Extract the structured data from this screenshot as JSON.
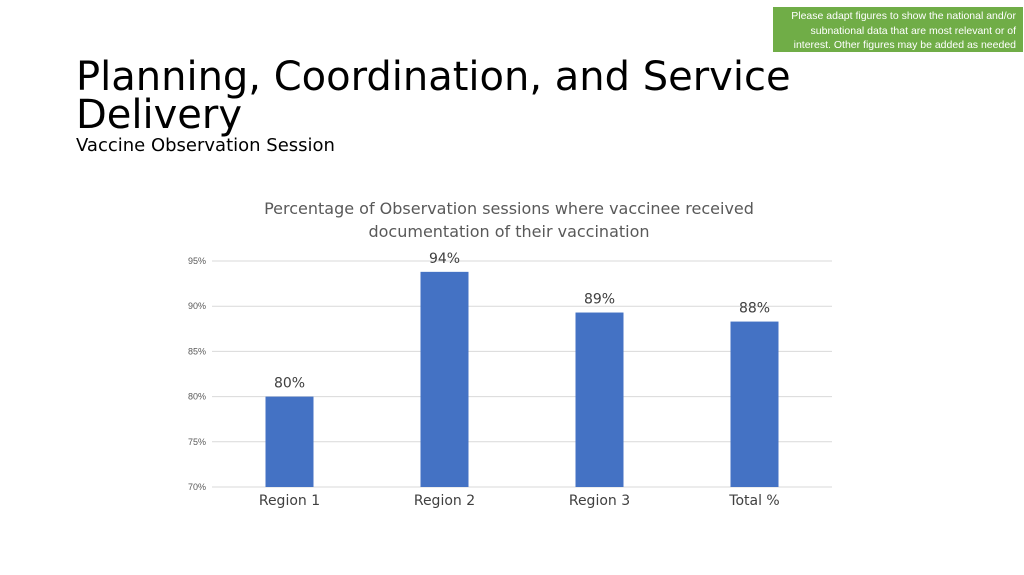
{
  "note": {
    "lines": [
      "Please adapt figures to show the national and/or",
      "subnational data that are most relevant or of",
      "interest. Other figures may be added as needed"
    ]
  },
  "slide": {
    "title": "Planning, Coordination, and Service Delivery",
    "subtitle": "Vaccine Observation Session"
  },
  "colors": {
    "bar": "#4472c4",
    "note_bg": "#70ad47",
    "grid": "#d9d9d9"
  },
  "chart_data": {
    "type": "bar",
    "title_lines": [
      "Percentage of Observation sessions where vaccinee received",
      "documentation of their vaccination"
    ],
    "categories": [
      "Region 1",
      "Region 2",
      "Region 3",
      "Total %"
    ],
    "values": [
      80,
      93.8,
      89.3,
      88.3
    ],
    "data_labels": [
      "80%",
      "94%",
      "89%",
      "88%"
    ],
    "ylim": [
      70,
      95
    ],
    "yticks": [
      70,
      75,
      80,
      85,
      90,
      95
    ],
    "ytick_labels": [
      "70%",
      "75%",
      "80%",
      "85%",
      "90%",
      "95%"
    ],
    "grid": true
  }
}
